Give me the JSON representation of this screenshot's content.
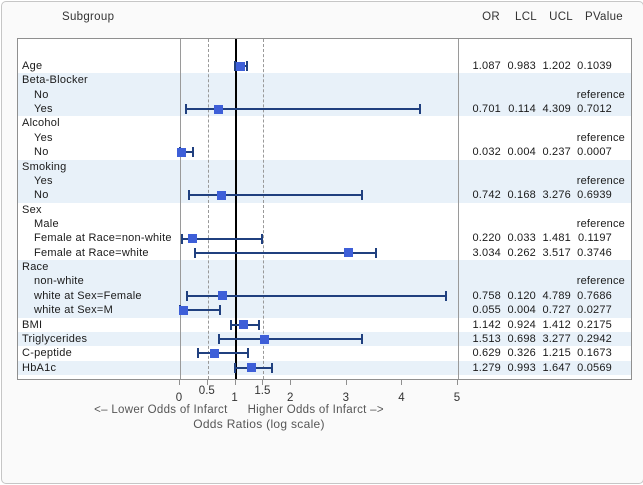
{
  "figure": {
    "header": {
      "subgroup": "Subgroup",
      "or": "OR",
      "lcl": "LCL",
      "ucl": "UCL",
      "pvalue": "PValue"
    },
    "axis_title_left": "<– Lower Odds of Infarct",
    "axis_title_right": "Higher Odds of Infarct –>",
    "axis_title_2": "Odds Ratios (log scale)",
    "reference_label": "reference"
  },
  "colors": {
    "band_blue": "#e8f1f9",
    "marker": "#3e5fd8",
    "error_bar": "#20407f",
    "reference_line": "#000000",
    "dashed_grid": "#999999",
    "axis_wall": "#9a9a9a"
  },
  "chart_data": {
    "type": "forest",
    "x_axis": {
      "label": "Odds Ratios (log scale)",
      "direction_label_lower": "<– Lower Odds of Infarct",
      "direction_label_higher": "Higher Odds of Infarct –>",
      "range": [
        0,
        5
      ],
      "grid": false,
      "reference_line": 1,
      "dashed_reference_lines": [
        0.5,
        1.5
      ],
      "ticks": [
        {
          "label": "0",
          "value": 0,
          "stagger": false
        },
        {
          "label": "0.5",
          "value": 0.5,
          "stagger": true
        },
        {
          "label": "1",
          "value": 1,
          "stagger": false
        },
        {
          "label": "1.5",
          "value": 1.5,
          "stagger": true
        },
        {
          "label": "2",
          "value": 2,
          "stagger": false
        },
        {
          "label": "3",
          "value": 3,
          "stagger": false
        },
        {
          "label": "4",
          "value": 4,
          "stagger": false
        },
        {
          "label": "5",
          "value": 5,
          "stagger": false
        }
      ]
    },
    "columns": [
      "OR",
      "LCL",
      "UCL",
      "PValue"
    ],
    "rows": [
      {
        "label": "Age",
        "indent": 0,
        "band": "white",
        "or": "1.087",
        "lcl": "0.983",
        "ucl": "1.202",
        "pvalue": "0.1039"
      },
      {
        "label": "Beta-Blocker",
        "indent": 0,
        "band": "blue"
      },
      {
        "label": "No",
        "indent": 1,
        "band": "blue",
        "reference": true
      },
      {
        "label": "Yes",
        "indent": 1,
        "band": "blue",
        "or": "0.701",
        "lcl": "0.114",
        "ucl": "4.309",
        "pvalue": "0.7012"
      },
      {
        "label": "Alcohol",
        "indent": 0,
        "band": "white"
      },
      {
        "label": "Yes",
        "indent": 1,
        "band": "white",
        "reference": true
      },
      {
        "label": "No",
        "indent": 1,
        "band": "white",
        "or": "0.032",
        "lcl": "0.004",
        "ucl": "0.237",
        "pvalue": "0.0007"
      },
      {
        "label": "Smoking",
        "indent": 0,
        "band": "blue"
      },
      {
        "label": "Yes",
        "indent": 1,
        "band": "blue",
        "reference": true
      },
      {
        "label": "No",
        "indent": 1,
        "band": "blue",
        "or": "0.742",
        "lcl": "0.168",
        "ucl": "3.276",
        "pvalue": "0.6939"
      },
      {
        "label": "Sex",
        "indent": 0,
        "band": "white"
      },
      {
        "label": "Male",
        "indent": 1,
        "band": "white",
        "reference": true
      },
      {
        "label": "Female at Race=non-white",
        "indent": 1,
        "band": "white",
        "or": "0.220",
        "lcl": "0.033",
        "ucl": "1.481",
        "pvalue": "0.1197"
      },
      {
        "label": "Female at Race=white",
        "indent": 1,
        "band": "white",
        "or": "3.034",
        "lcl": "0.262",
        "ucl": "3.517",
        "pvalue": "0.3746"
      },
      {
        "label": "Race",
        "indent": 0,
        "band": "blue"
      },
      {
        "label": "non-white",
        "indent": 1,
        "band": "blue",
        "reference": true
      },
      {
        "label": "white at Sex=Female",
        "indent": 1,
        "band": "blue",
        "or": "0.758",
        "lcl": "0.120",
        "ucl": "4.789",
        "pvalue": "0.7686"
      },
      {
        "label": "white at Sex=M",
        "indent": 1,
        "band": "blue",
        "or": "0.055",
        "lcl": "0.004",
        "ucl": "0.727",
        "pvalue": "0.0277"
      },
      {
        "label": "BMI",
        "indent": 0,
        "band": "white",
        "or": "1.142",
        "lcl": "0.924",
        "ucl": "1.412",
        "pvalue": "0.2175"
      },
      {
        "label": "Triglycerides",
        "indent": 0,
        "band": "blue",
        "or": "1.513",
        "lcl": "0.698",
        "ucl": "3.277",
        "pvalue": "0.2942"
      },
      {
        "label": "C-peptide",
        "indent": 0,
        "band": "white",
        "or": "0.629",
        "lcl": "0.326",
        "ucl": "1.215",
        "pvalue": "0.1673"
      },
      {
        "label": "HbA1c",
        "indent": 0,
        "band": "blue",
        "or": "1.279",
        "lcl": "0.993",
        "ucl": "1.647",
        "pvalue": "0.0569"
      }
    ]
  }
}
